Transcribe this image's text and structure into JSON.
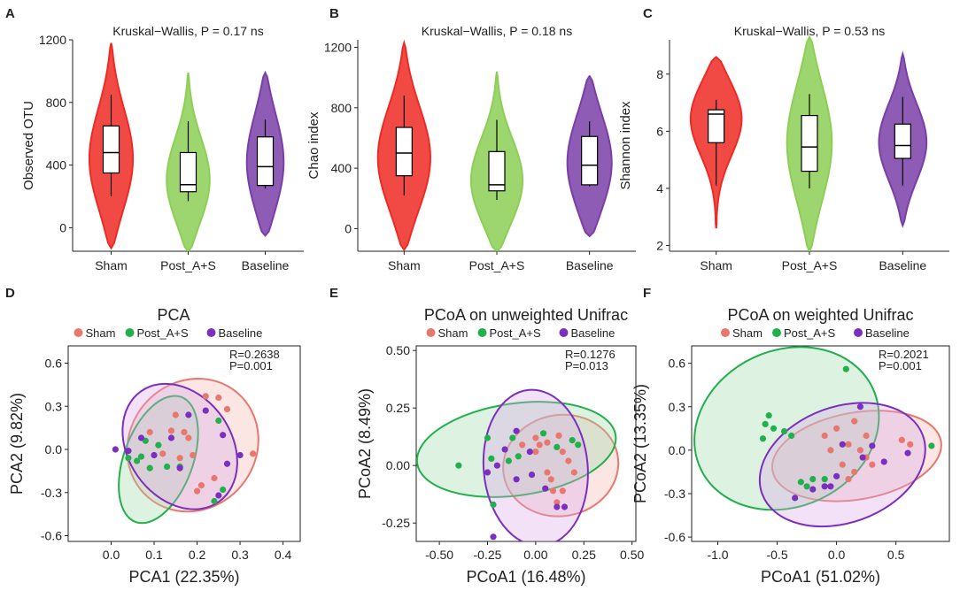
{
  "colors": {
    "Sham": "#ee2a24",
    "Post_A+S": "#8ccf55",
    "Baseline": "#7a3ea8",
    "scatter_Sham": "#e8786e",
    "scatter_Post": "#21b04b",
    "scatter_Baseline": "#7b2fbf"
  },
  "chart_data": [
    {
      "panel": "A",
      "type": "violin",
      "title": "Kruskal−Wallis, P = 0.17   ns",
      "ylabel": "Observed OTU",
      "categories": [
        "Sham",
        "Post_A+S",
        "Baseline"
      ],
      "ylim": [
        -150,
        1200
      ],
      "yticks": [
        0,
        400,
        800,
        1200
      ],
      "boxes": [
        {
          "group": "Sham",
          "min": 200,
          "q1": 350,
          "median": 480,
          "q3": 650,
          "max": 850,
          "vmin": -130,
          "vmax": 1180,
          "peak": 420,
          "w": 0.95
        },
        {
          "group": "Post_A+S",
          "min": 170,
          "q1": 230,
          "median": 275,
          "q3": 480,
          "max": 680,
          "vmin": -150,
          "vmax": 990,
          "peak": 280,
          "w": 0.95
        },
        {
          "group": "Baseline",
          "min": 250,
          "q1": 270,
          "median": 390,
          "q3": 580,
          "max": 690,
          "vmin": -50,
          "vmax": 990,
          "peak": 400,
          "w": 0.8
        }
      ]
    },
    {
      "panel": "B",
      "type": "violin",
      "title": "Kruskal−Wallis, P = 0.18   ns",
      "ylabel": "Chao index",
      "categories": [
        "Sham",
        "Post_A+S",
        "Baseline"
      ],
      "ylim": [
        -150,
        1250
      ],
      "yticks": [
        0,
        400,
        800,
        1200
      ],
      "boxes": [
        {
          "group": "Sham",
          "min": 220,
          "q1": 350,
          "median": 500,
          "q3": 670,
          "max": 880,
          "vmin": -140,
          "vmax": 1230,
          "peak": 450,
          "w": 0.95
        },
        {
          "group": "Post_A+S",
          "min": 190,
          "q1": 250,
          "median": 290,
          "q3": 510,
          "max": 720,
          "vmin": -150,
          "vmax": 1040,
          "peak": 290,
          "w": 0.95
        },
        {
          "group": "Baseline",
          "min": 280,
          "q1": 290,
          "median": 420,
          "q3": 610,
          "max": 710,
          "vmin": -50,
          "vmax": 1010,
          "peak": 420,
          "w": 0.8
        }
      ]
    },
    {
      "panel": "C",
      "type": "violin",
      "title": "Kruskal−Wallis, P = 0.53   ns",
      "ylabel": "Shannon index",
      "categories": [
        "Sham",
        "Post_A+S",
        "Baseline"
      ],
      "ylim": [
        1.8,
        9.2
      ],
      "yticks": [
        2,
        4,
        6,
        8
      ],
      "boxes": [
        {
          "group": "Sham",
          "min": 4.1,
          "q1": 5.6,
          "median": 6.6,
          "q3": 6.75,
          "max": 7.1,
          "vmin": 2.6,
          "vmax": 8.6,
          "peak": 6.6,
          "w": 0.95
        },
        {
          "group": "Post_A+S",
          "min": 4.0,
          "q1": 4.6,
          "median": 5.45,
          "q3": 6.55,
          "max": 7.3,
          "vmin": 1.8,
          "vmax": 9.3,
          "peak": 5.6,
          "w": 0.8
        },
        {
          "group": "Baseline",
          "min": 4.1,
          "q1": 5.05,
          "median": 5.5,
          "q3": 6.25,
          "max": 7.2,
          "vmin": 2.7,
          "vmax": 8.7,
          "peak": 5.6,
          "w": 0.85
        }
      ]
    },
    {
      "panel": "D",
      "type": "scatter",
      "title": "PCA",
      "xlabel": "PCA1 (22.35%)",
      "ylabel": "PCA2 (9.82%)",
      "xlim": [
        -0.1,
        0.44
      ],
      "ylim": [
        -0.64,
        0.72
      ],
      "xticks": [
        0.0,
        0.1,
        0.2,
        0.3,
        0.4
      ],
      "yticks": [
        -0.6,
        -0.3,
        0.0,
        0.3,
        0.6
      ],
      "stats": [
        "R=0.2638",
        "P=0.001"
      ],
      "ellipses": [
        {
          "group": "Sham",
          "cx": 0.19,
          "cy": 0.03,
          "rx": 0.16,
          "ry": 0.44,
          "angle": -50
        },
        {
          "group": "Post_A+S",
          "cx": 0.11,
          "cy": -0.07,
          "rx": 0.155,
          "ry": 0.24,
          "angle": -70
        },
        {
          "group": "Baseline",
          "cx": 0.16,
          "cy": 0.02,
          "rx": 0.12,
          "ry": 0.47,
          "angle": -35
        }
      ],
      "points": {
        "Sham": [
          [
            0.15,
            0.24
          ],
          [
            0.22,
            0.37
          ],
          [
            0.25,
            0.36
          ],
          [
            0.27,
            0.28
          ],
          [
            0.33,
            -0.03
          ],
          [
            0.12,
            -0.03
          ],
          [
            0.16,
            -0.06
          ],
          [
            0.19,
            -0.04
          ],
          [
            0.21,
            -0.25
          ],
          [
            0.24,
            -0.2
          ],
          [
            0.18,
            0.08
          ],
          [
            0.2,
            -0.29
          ],
          [
            0.14,
            0.13
          ],
          [
            0.17,
            0.12
          ],
          [
            0.09,
            0.12
          ]
        ],
        "Post_A+S": [
          [
            0.04,
            -0.06
          ],
          [
            0.06,
            -0.08
          ],
          [
            0.07,
            -0.05
          ],
          [
            0.09,
            -0.13
          ],
          [
            0.11,
            0.03
          ],
          [
            0.13,
            -0.12
          ],
          [
            0.16,
            -0.12
          ],
          [
            0.25,
            0.2
          ],
          [
            0.26,
            -0.28
          ],
          [
            0.08,
            0.06
          ],
          [
            0.24,
            -0.36
          ]
        ],
        "Baseline": [
          [
            0.01,
            0.0
          ],
          [
            0.04,
            -0.01
          ],
          [
            0.07,
            0.08
          ],
          [
            0.1,
            -0.04
          ],
          [
            0.14,
            0.08
          ],
          [
            0.18,
            0.24
          ],
          [
            0.26,
            0.1
          ],
          [
            0.3,
            -0.04
          ],
          [
            0.22,
            0.27
          ],
          [
            0.25,
            -0.32
          ],
          [
            0.16,
            -0.13
          ],
          [
            0.27,
            -0.1
          ]
        ]
      }
    },
    {
      "panel": "E",
      "type": "scatter",
      "title": "PCoA on unweighted Unifrac",
      "xlabel": "PCoA1 (16.48%)",
      "ylabel": "PCoA2 (8.49%)",
      "xlim": [
        -0.62,
        0.52
      ],
      "ylim": [
        -0.33,
        0.52
      ],
      "xticks": [
        -0.5,
        -0.25,
        0.0,
        0.25,
        0.5
      ],
      "yticks": [
        -0.25,
        0.0,
        0.25,
        0.5
      ],
      "stats": [
        "R=0.1276",
        "P=0.013"
      ],
      "ellipses": [
        {
          "group": "Sham",
          "cx": 0.13,
          "cy": 0.0,
          "rx": 0.3,
          "ry": 0.22,
          "angle": -10
        },
        {
          "group": "Post_A+S",
          "cx": -0.1,
          "cy": 0.07,
          "rx": 0.52,
          "ry": 0.2,
          "angle": -8
        },
        {
          "group": "Baseline",
          "cx": 0.0,
          "cy": -0.01,
          "rx": 0.27,
          "ry": 0.34,
          "angle": -5
        }
      ],
      "points": {
        "Sham": [
          [
            -0.07,
            0.09
          ],
          [
            0.0,
            0.12
          ],
          [
            0.02,
            0.09
          ],
          [
            0.06,
            0.1
          ],
          [
            0.12,
            0.13
          ],
          [
            0.14,
            0.06
          ],
          [
            0.17,
            0.02
          ],
          [
            0.06,
            -0.03
          ],
          [
            0.08,
            -0.06
          ],
          [
            0.09,
            -0.11
          ],
          [
            0.11,
            -0.16
          ],
          [
            0.14,
            -0.11
          ],
          [
            0.2,
            -0.03
          ],
          [
            0.0,
            0.06
          ]
        ],
        "Post_A+S": [
          [
            -0.4,
            0.0
          ],
          [
            -0.25,
            0.12
          ],
          [
            -0.23,
            0.03
          ],
          [
            -0.14,
            0.02
          ],
          [
            -0.09,
            0.04
          ],
          [
            0.04,
            0.14
          ],
          [
            0.11,
            0.08
          ],
          [
            0.19,
            0.11
          ],
          [
            0.22,
            0.09
          ],
          [
            -0.22,
            -0.17
          ],
          [
            -0.12,
            0.12
          ]
        ],
        "Baseline": [
          [
            -0.25,
            -0.03
          ],
          [
            -0.2,
            0.0
          ],
          [
            -0.16,
            0.07
          ],
          [
            -0.03,
            0.06
          ],
          [
            -0.1,
            -0.06
          ],
          [
            -0.02,
            -0.04
          ],
          [
            0.05,
            -0.1
          ],
          [
            0.11,
            -0.18
          ],
          [
            0.15,
            -0.18
          ],
          [
            -0.22,
            -0.31
          ],
          [
            -0.1,
            0.15
          ]
        ]
      }
    },
    {
      "panel": "F",
      "type": "scatter",
      "title": "PCoA on weighted Unifrac",
      "xlabel": "PCoA1 (51.02%)",
      "ylabel": "PCoA2 (13.35%)",
      "xlim": [
        -1.22,
        0.95
      ],
      "ylim": [
        -0.63,
        0.72
      ],
      "xticks": [
        -1.0,
        -0.5,
        0.0,
        0.5
      ],
      "yticks": [
        -0.6,
        -0.3,
        0.0,
        0.3,
        0.6
      ],
      "stats": [
        "R=0.2021",
        "P=0.001"
      ],
      "ellipses": [
        {
          "group": "Sham",
          "cx": 0.17,
          "cy": -0.04,
          "rx": 0.72,
          "ry": 0.3,
          "angle": -10
        },
        {
          "group": "Post_A+S",
          "cx": -0.42,
          "cy": 0.15,
          "rx": 0.8,
          "ry": 0.54,
          "angle": -25
        },
        {
          "group": "Baseline",
          "cx": 0.05,
          "cy": -0.1,
          "rx": 0.72,
          "ry": 0.4,
          "angle": -20
        }
      ],
      "points": {
        "Sham": [
          [
            -0.05,
            0.0
          ],
          [
            0.0,
            0.15
          ],
          [
            0.1,
            0.04
          ],
          [
            0.15,
            0.2
          ],
          [
            0.2,
            0.0
          ],
          [
            0.25,
            -0.05
          ],
          [
            0.3,
            -0.1
          ],
          [
            0.05,
            -0.1
          ],
          [
            0.1,
            -0.2
          ],
          [
            0.15,
            -0.15
          ],
          [
            0.55,
            0.07
          ],
          [
            0.62,
            0.04
          ],
          [
            -0.1,
            0.1
          ],
          [
            0.25,
            0.1
          ]
        ],
        "Post_A+S": [
          [
            -0.6,
            0.18
          ],
          [
            -0.57,
            0.24
          ],
          [
            -0.53,
            0.15
          ],
          [
            -0.44,
            0.13
          ],
          [
            -0.38,
            0.1
          ],
          [
            -0.62,
            0.08
          ],
          [
            0.08,
            0.56
          ],
          [
            -0.3,
            -0.22
          ],
          [
            -0.25,
            -0.25
          ],
          [
            -0.2,
            -0.2
          ],
          [
            -0.1,
            -0.2
          ],
          [
            0.8,
            0.03
          ]
        ],
        "Baseline": [
          [
            -0.35,
            -0.33
          ],
          [
            -0.2,
            -0.27
          ],
          [
            -0.1,
            -0.25
          ],
          [
            0.0,
            -0.18
          ],
          [
            0.05,
            0.04
          ],
          [
            0.2,
            0.3
          ],
          [
            0.3,
            0.03
          ],
          [
            0.4,
            -0.08
          ],
          [
            0.6,
            -0.02
          ],
          [
            -0.05,
            -0.25
          ],
          [
            0.22,
            -0.05
          ]
        ]
      }
    }
  ],
  "panel_labels": [
    "A",
    "B",
    "C",
    "D",
    "E",
    "F"
  ],
  "legend_items": [
    "Sham",
    "Post_A+S",
    "Baseline"
  ]
}
